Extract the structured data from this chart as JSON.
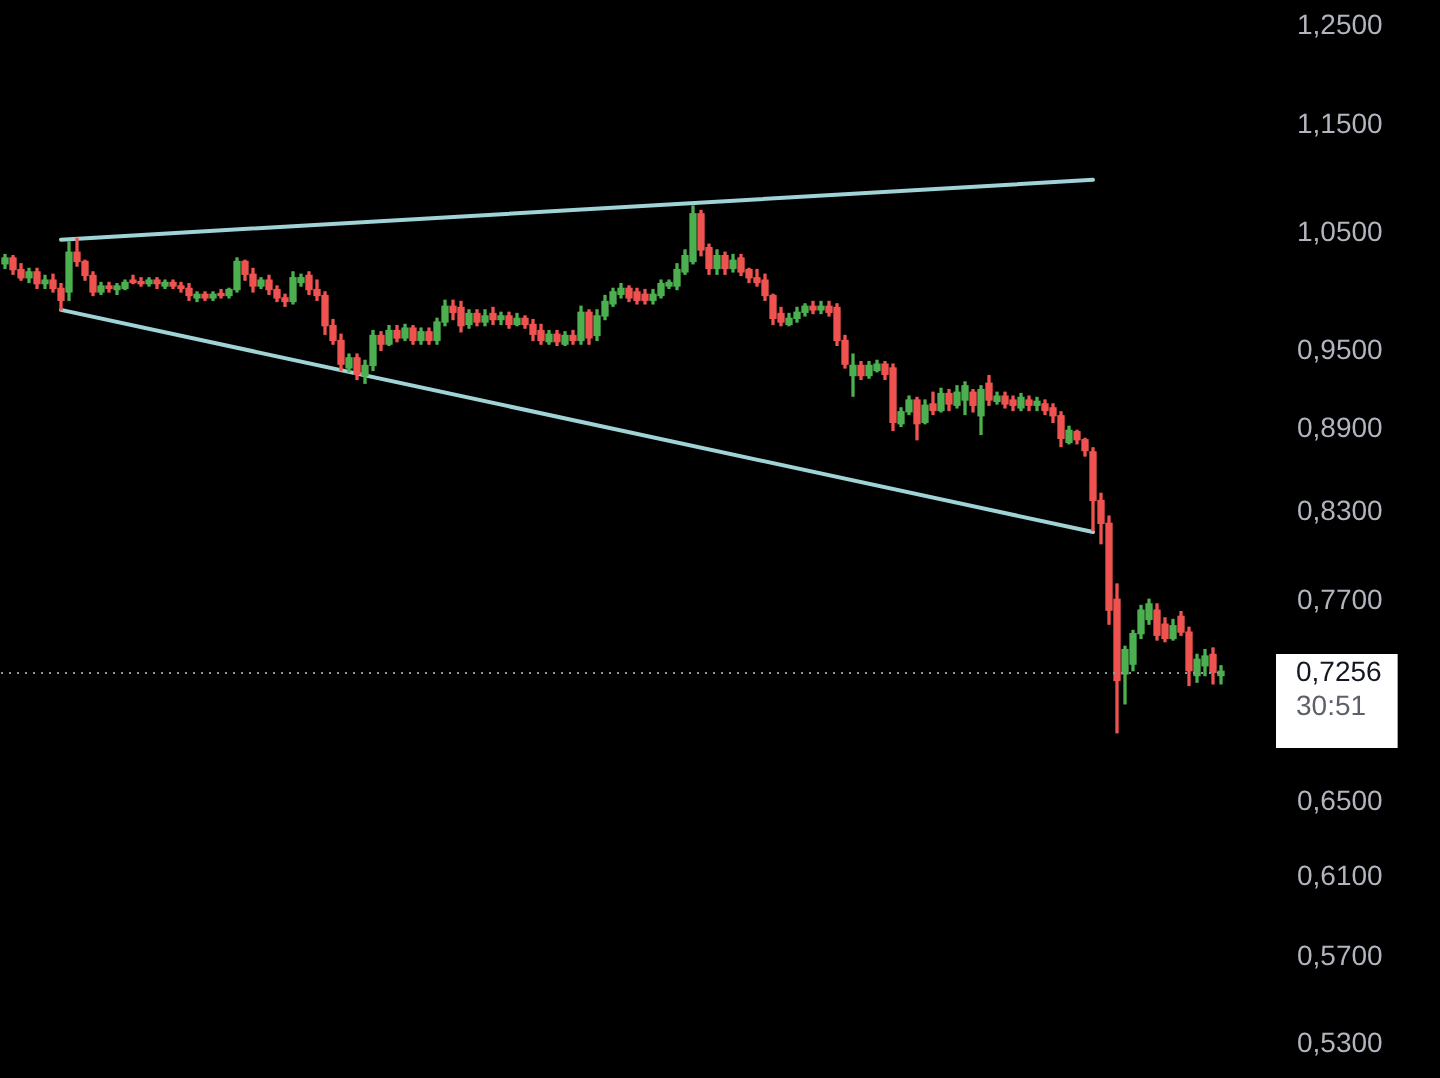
{
  "chart_data": {
    "type": "candlestick",
    "categories": [
      null,
      null,
      null,
      null,
      null,
      null,
      null,
      null,
      null,
      null,
      null,
      null,
      null,
      null,
      null,
      null,
      null,
      null,
      null,
      null,
      null,
      null,
      null,
      null,
      null,
      null,
      null,
      null,
      null,
      null,
      null,
      null,
      null,
      null,
      null,
      null,
      null,
      null,
      null,
      null,
      null,
      null,
      null,
      null,
      null,
      null,
      null,
      null,
      null,
      null,
      null,
      null,
      null,
      null,
      null,
      null,
      null,
      null,
      null,
      null,
      null,
      null,
      null,
      null,
      null,
      null,
      null,
      null,
      null,
      null,
      null,
      null,
      null,
      null,
      null,
      null,
      null,
      null,
      null,
      null,
      null,
      null,
      null,
      null,
      null,
      null,
      null,
      null,
      null,
      null,
      null,
      null,
      null,
      null,
      null,
      null,
      null,
      null,
      null,
      null,
      null,
      null,
      null,
      null,
      null,
      null,
      null,
      null,
      null,
      null,
      null,
      null,
      null,
      null,
      null,
      null,
      null,
      null,
      null,
      null,
      null,
      null,
      null,
      null,
      null,
      null,
      null,
      null,
      null,
      null,
      null,
      null,
      null,
      null,
      null,
      null,
      null,
      null,
      null,
      null,
      null,
      null,
      null,
      null,
      null,
      null,
      null,
      null,
      null,
      null,
      null,
      null,
      null
    ],
    "ohlc": [
      [
        1.023,
        1.031,
        1.019,
        1.028
      ],
      [
        1.028,
        1.03,
        1.014,
        1.018
      ],
      [
        1.018,
        1.023,
        1.009,
        1.011
      ],
      [
        1.011,
        1.019,
        1.007,
        1.016
      ],
      [
        1.016,
        1.019,
        1.002,
        1.006
      ],
      [
        1.006,
        1.013,
        1.002,
        1.009
      ],
      [
        1.009,
        1.014,
        0.999,
        1.002
      ],
      [
        1.002,
        1.006,
        0.984,
        0.992
      ],
      [
        0.999,
        1.042,
        0.992,
        1.033
      ],
      [
        1.033,
        1.045,
        1.021,
        1.025
      ],
      [
        1.025,
        1.026,
        1.009,
        1.013
      ],
      [
        1.013,
        1.016,
        0.996,
        0.999
      ],
      [
        0.999,
        1.007,
        0.997,
        1.004
      ],
      [
        1.004,
        1.007,
        0.999,
        1.002
      ],
      [
        1.001,
        1.006,
        0.997,
        1.004
      ],
      [
        1.002,
        1.009,
        1.001,
        1.007
      ],
      [
        1.009,
        1.013,
        1.006,
        1.007
      ],
      [
        1.007,
        1.011,
        1.004,
        1.006
      ],
      [
        1.006,
        1.011,
        1.004,
        1.009
      ],
      [
        1.009,
        1.011,
        1.002,
        1.006
      ],
      [
        1.004,
        1.009,
        1.002,
        1.007
      ],
      [
        1.007,
        1.009,
        1.002,
        1.004
      ],
      [
        1.004,
        1.007,
        0.999,
        1.002
      ],
      [
        1.002,
        1.006,
        0.992,
        0.996
      ],
      [
        0.994,
        0.999,
        0.991,
        0.997
      ],
      [
        0.997,
        0.999,
        0.992,
        0.994
      ],
      [
        0.994,
        0.999,
        0.992,
        0.997
      ],
      [
        0.997,
        1.001,
        0.994,
        0.996
      ],
      [
        0.996,
        1.002,
        0.994,
        1.001
      ],
      [
        1.001,
        1.028,
        0.999,
        1.025
      ],
      [
        1.025,
        1.026,
        1.009,
        1.014
      ],
      [
        1.014,
        1.019,
        0.999,
        1.004
      ],
      [
        1.004,
        1.011,
        1.002,
        1.009
      ],
      [
        1.009,
        1.013,
        0.997,
        1.001
      ],
      [
        1.001,
        1.004,
        0.991,
        0.994
      ],
      [
        0.994,
        0.997,
        0.987,
        0.991
      ],
      [
        0.991,
        1.016,
        0.989,
        1.011
      ],
      [
        1.007,
        1.014,
        1.004,
        1.011
      ],
      [
        1.013,
        1.016,
        0.997,
        1.001
      ],
      [
        1.001,
        1.009,
        0.992,
        0.996
      ],
      [
        0.996,
        0.999,
        0.964,
        0.971
      ],
      [
        0.971,
        0.976,
        0.956,
        0.959
      ],
      [
        0.959,
        0.964,
        0.935,
        0.94
      ],
      [
        0.937,
        0.948,
        0.934,
        0.945
      ],
      [
        0.945,
        0.948,
        0.928,
        0.932
      ],
      [
        0.931,
        0.943,
        0.925,
        0.939
      ],
      [
        0.939,
        0.967,
        0.935,
        0.963
      ],
      [
        0.963,
        0.966,
        0.951,
        0.956
      ],
      [
        0.956,
        0.971,
        0.955,
        0.967
      ],
      [
        0.967,
        0.971,
        0.958,
        0.961
      ],
      [
        0.961,
        0.972,
        0.959,
        0.969
      ],
      [
        0.969,
        0.971,
        0.956,
        0.959
      ],
      [
        0.959,
        0.969,
        0.956,
        0.966
      ],
      [
        0.966,
        0.969,
        0.956,
        0.959
      ],
      [
        0.959,
        0.977,
        0.956,
        0.974
      ],
      [
        0.974,
        0.992,
        0.971,
        0.987
      ],
      [
        0.987,
        0.992,
        0.976,
        0.982
      ],
      [
        0.986,
        0.991,
        0.966,
        0.971
      ],
      [
        0.972,
        0.984,
        0.969,
        0.981
      ],
      [
        0.981,
        0.984,
        0.971,
        0.974
      ],
      [
        0.974,
        0.984,
        0.971,
        0.979
      ],
      [
        0.981,
        0.986,
        0.972,
        0.976
      ],
      [
        0.976,
        0.982,
        0.972,
        0.979
      ],
      [
        0.979,
        0.982,
        0.969,
        0.972
      ],
      [
        0.972,
        0.981,
        0.971,
        0.977
      ],
      [
        0.977,
        0.979,
        0.969,
        0.972
      ],
      [
        0.972,
        0.976,
        0.959,
        0.964
      ],
      [
        0.967,
        0.972,
        0.956,
        0.959
      ],
      [
        0.958,
        0.967,
        0.956,
        0.964
      ],
      [
        0.964,
        0.967,
        0.955,
        0.958
      ],
      [
        0.956,
        0.966,
        0.955,
        0.963
      ],
      [
        0.963,
        0.967,
        0.956,
        0.959
      ],
      [
        0.959,
        0.987,
        0.956,
        0.982
      ],
      [
        0.982,
        0.984,
        0.956,
        0.961
      ],
      [
        0.963,
        0.984,
        0.959,
        0.979
      ],
      [
        0.979,
        0.996,
        0.976,
        0.991
      ],
      [
        0.989,
        1.002,
        0.987,
        0.999
      ],
      [
        0.997,
        1.006,
        0.994,
        1.002
      ],
      [
        1.002,
        1.004,
        0.991,
        0.994
      ],
      [
        0.999,
        1.002,
        0.989,
        0.992
      ],
      [
        0.997,
        1.001,
        0.989,
        0.992
      ],
      [
        0.992,
        1.001,
        0.989,
        0.997
      ],
      [
        0.996,
        1.009,
        0.994,
        1.006
      ],
      [
        1.004,
        1.009,
        1.002,
        1.007
      ],
      [
        1.004,
        1.023,
        1.001,
        1.018
      ],
      [
        1.016,
        1.035,
        1.014,
        1.03
      ],
      [
        1.025,
        1.074,
        1.023,
        1.067
      ],
      [
        1.067,
        1.07,
        1.03,
        1.035
      ],
      [
        1.037,
        1.04,
        1.014,
        1.019
      ],
      [
        1.019,
        1.035,
        1.014,
        1.03
      ],
      [
        1.03,
        1.033,
        1.014,
        1.019
      ],
      [
        1.019,
        1.031,
        1.016,
        1.026
      ],
      [
        1.028,
        1.031,
        1.013,
        1.016
      ],
      [
        1.018,
        1.019,
        1.007,
        1.011
      ],
      [
        1.011,
        1.018,
        1.004,
        1.007
      ],
      [
        1.009,
        1.014,
        0.992,
        0.996
      ],
      [
        0.996,
        0.997,
        0.972,
        0.977
      ],
      [
        0.981,
        0.986,
        0.971,
        0.974
      ],
      [
        0.972,
        0.981,
        0.971,
        0.977
      ],
      [
        0.977,
        0.986,
        0.974,
        0.982
      ],
      [
        0.982,
        0.989,
        0.979,
        0.987
      ],
      [
        0.987,
        0.991,
        0.981,
        0.984
      ],
      [
        0.984,
        0.991,
        0.981,
        0.987
      ],
      [
        0.987,
        0.991,
        0.979,
        0.982
      ],
      [
        0.986,
        0.989,
        0.955,
        0.959
      ],
      [
        0.959,
        0.963,
        0.937,
        0.94
      ],
      [
        0.931,
        0.948,
        0.915,
        0.939
      ],
      [
        0.939,
        0.942,
        0.928,
        0.931
      ],
      [
        0.931,
        0.942,
        0.929,
        0.939
      ],
      [
        0.935,
        0.943,
        0.934,
        0.94
      ],
      [
        0.94,
        0.942,
        0.928,
        0.932
      ],
      [
        0.937,
        0.94,
        0.889,
        0.895
      ],
      [
        0.894,
        0.906,
        0.892,
        0.903
      ],
      [
        0.903,
        0.915,
        0.901,
        0.912
      ],
      [
        0.912,
        0.914,
        0.882,
        0.894
      ],
      [
        0.895,
        0.912,
        0.894,
        0.908
      ],
      [
        0.909,
        0.918,
        0.901,
        0.904
      ],
      [
        0.904,
        0.921,
        0.903,
        0.917
      ],
      [
        0.917,
        0.92,
        0.904,
        0.909
      ],
      [
        0.908,
        0.923,
        0.906,
        0.918
      ],
      [
        0.912,
        0.926,
        0.901,
        0.923
      ],
      [
        0.918,
        0.92,
        0.903,
        0.908
      ],
      [
        0.9,
        0.923,
        0.886,
        0.92
      ],
      [
        0.925,
        0.931,
        0.908,
        0.912
      ],
      [
        0.911,
        0.918,
        0.909,
        0.915
      ],
      [
        0.915,
        0.918,
        0.906,
        0.909
      ],
      [
        0.912,
        0.915,
        0.904,
        0.908
      ],
      [
        0.906,
        0.917,
        0.904,
        0.914
      ],
      [
        0.912,
        0.915,
        0.904,
        0.908
      ],
      [
        0.908,
        0.914,
        0.904,
        0.911
      ],
      [
        0.909,
        0.912,
        0.901,
        0.904
      ],
      [
        0.906,
        0.909,
        0.895,
        0.9
      ],
      [
        0.9,
        0.903,
        0.877,
        0.883
      ],
      [
        0.88,
        0.892,
        0.879,
        0.889
      ],
      [
        0.888,
        0.889,
        0.879,
        0.882
      ],
      [
        0.882,
        0.883,
        0.87,
        0.874
      ],
      [
        0.873,
        0.876,
        0.817,
        0.838
      ],
      [
        0.838,
        0.843,
        0.808,
        0.822
      ],
      [
        0.822,
        0.827,
        0.755,
        0.764
      ],
      [
        0.771,
        0.781,
        0.689,
        0.72
      ],
      [
        0.724,
        0.741,
        0.706,
        0.739
      ],
      [
        0.73,
        0.751,
        0.726,
        0.749
      ],
      [
        0.749,
        0.767,
        0.746,
        0.764
      ],
      [
        0.758,
        0.771,
        0.755,
        0.768
      ],
      [
        0.764,
        0.768,
        0.745,
        0.748
      ],
      [
        0.755,
        0.759,
        0.744,
        0.746
      ],
      [
        0.746,
        0.758,
        0.745,
        0.754
      ],
      [
        0.76,
        0.763,
        0.748,
        0.75
      ],
      [
        0.75,
        0.753,
        0.717,
        0.726
      ],
      [
        0.723,
        0.736,
        0.719,
        0.733
      ],
      [
        0.729,
        0.739,
        0.723,
        0.735
      ],
      [
        0.736,
        0.74,
        0.718,
        0.725
      ],
      [
        0.723,
        0.729,
        0.718,
        0.7256
      ]
    ],
    "colors": [
      "#4caf50",
      "#ef5350",
      "#ef5350",
      "#4caf50",
      "#ef5350",
      "#4caf50",
      "#ef5350",
      "#ef5350",
      "#4caf50",
      "#ef5350",
      "#ef5350",
      "#ef5350",
      "#4caf50",
      "#ef5350",
      "#4caf50",
      "#4caf50",
      "#ef5350",
      "#ef5350",
      "#4caf50",
      "#ef5350",
      "#4caf50",
      "#ef5350",
      "#ef5350",
      "#ef5350",
      "#4caf50",
      "#ef5350",
      "#4caf50",
      "#ef5350",
      "#4caf50",
      "#4caf50",
      "#ef5350",
      "#ef5350",
      "#4caf50",
      "#ef5350",
      "#ef5350",
      "#ef5350",
      "#4caf50",
      "#4caf50",
      "#ef5350",
      "#ef5350",
      "#ef5350",
      "#ef5350",
      "#ef5350",
      "#4caf50",
      "#ef5350",
      "#4caf50",
      "#4caf50",
      "#ef5350",
      "#4caf50",
      "#ef5350",
      "#4caf50",
      "#ef5350",
      "#4caf50",
      "#ef5350",
      "#4caf50",
      "#4caf50",
      "#ef5350",
      "#ef5350",
      "#4caf50",
      "#ef5350",
      "#4caf50",
      "#ef5350",
      "#4caf50",
      "#ef5350",
      "#4caf50",
      "#ef5350",
      "#ef5350",
      "#ef5350",
      "#4caf50",
      "#ef5350",
      "#4caf50",
      "#ef5350",
      "#4caf50",
      "#ef5350",
      "#4caf50",
      "#4caf50",
      "#4caf50",
      "#4caf50",
      "#ef5350",
      "#ef5350",
      "#ef5350",
      "#4caf50",
      "#4caf50",
      "#4caf50",
      "#4caf50",
      "#4caf50",
      "#4caf50",
      "#ef5350",
      "#ef5350",
      "#4caf50",
      "#ef5350",
      "#4caf50",
      "#ef5350",
      "#ef5350",
      "#ef5350",
      "#ef5350",
      "#ef5350",
      "#ef5350",
      "#4caf50",
      "#4caf50",
      "#4caf50",
      "#ef5350",
      "#4caf50",
      "#ef5350",
      "#ef5350",
      "#ef5350",
      "#4caf50",
      "#ef5350",
      "#4caf50",
      "#4caf50",
      "#ef5350",
      "#ef5350",
      "#4caf50",
      "#4caf50",
      "#ef5350",
      "#4caf50",
      "#ef5350",
      "#4caf50",
      "#ef5350",
      "#4caf50",
      "#4caf50",
      "#ef5350",
      "#4caf50",
      "#ef5350",
      "#4caf50",
      "#ef5350",
      "#ef5350",
      "#4caf50",
      "#ef5350",
      "#4caf50",
      "#ef5350",
      "#ef5350",
      "#ef5350",
      "#4caf50",
      "#ef5350",
      "#ef5350",
      "#ef5350",
      "#ef5350",
      "#ef5350",
      "#ef5350",
      "#4caf50",
      "#4caf50",
      "#4caf50",
      "#4caf50",
      "#ef5350",
      "#ef5350",
      "#4caf50",
      "#ef5350",
      "#ef5350",
      "#4caf50",
      "#4caf50",
      "#ef5350",
      "#4caf50"
    ],
    "series": [
      {
        "type": "line",
        "color": "#9fd3d6",
        "values": [
          null,
          null,
          null,
          null,
          null,
          null,
          null,
          1.044,
          null,
          null,
          null,
          null,
          null,
          null,
          null,
          null,
          null,
          null,
          null,
          null,
          null,
          null,
          null,
          null,
          null,
          null,
          null,
          null,
          null,
          null,
          null,
          null,
          null,
          null,
          null,
          null,
          null,
          null,
          null,
          null,
          null,
          null,
          null,
          null,
          null,
          null,
          null,
          null,
          null,
          null,
          null,
          null,
          null,
          null,
          null,
          null,
          null,
          null,
          null,
          null,
          null,
          null,
          null,
          null,
          null,
          null,
          null,
          null,
          null,
          null,
          null,
          null,
          null,
          null,
          null,
          null,
          null,
          null,
          null,
          null,
          null,
          null,
          null,
          null,
          null,
          null,
          null,
          null,
          null,
          null,
          null,
          null,
          null,
          null,
          null,
          null,
          null,
          null,
          null,
          null,
          null,
          null,
          null,
          null,
          null,
          null,
          null,
          null,
          null,
          null,
          null,
          null,
          null,
          null,
          null,
          null,
          null,
          null,
          null,
          null,
          null,
          null,
          null,
          null,
          null,
          null,
          null,
          null,
          null,
          null,
          null,
          null,
          null,
          null,
          null,
          null,
          1.098,
          null,
          null,
          null,
          null,
          null,
          null,
          null,
          null,
          null,
          null,
          null,
          null,
          null,
          null,
          null,
          null
        ]
      },
      {
        "type": "line",
        "color": "#9fd3d6",
        "values": [
          null,
          null,
          null,
          null,
          null,
          null,
          null,
          0.984,
          null,
          null,
          null,
          null,
          null,
          null,
          null,
          null,
          null,
          null,
          null,
          null,
          null,
          null,
          null,
          null,
          null,
          null,
          null,
          null,
          null,
          null,
          null,
          null,
          null,
          null,
          null,
          null,
          null,
          null,
          null,
          null,
          null,
          null,
          null,
          null,
          null,
          null,
          null,
          null,
          null,
          null,
          null,
          null,
          null,
          null,
          null,
          null,
          null,
          null,
          null,
          null,
          null,
          null,
          null,
          null,
          null,
          null,
          null,
          null,
          null,
          null,
          null,
          null,
          null,
          null,
          null,
          null,
          null,
          null,
          null,
          null,
          null,
          null,
          null,
          null,
          null,
          null,
          null,
          null,
          null,
          null,
          null,
          null,
          null,
          null,
          null,
          null,
          null,
          null,
          null,
          null,
          null,
          null,
          null,
          null,
          null,
          null,
          null,
          null,
          null,
          null,
          null,
          null,
          null,
          null,
          null,
          null,
          null,
          null,
          null,
          null,
          null,
          null,
          null,
          null,
          null,
          null,
          null,
          null,
          null,
          null,
          null,
          null,
          null,
          null,
          null,
          null,
          0.816,
          null,
          null,
          null,
          null,
          null,
          null,
          null,
          null,
          null,
          null,
          null,
          null,
          null,
          null,
          null,
          null
        ]
      }
    ],
    "log": "y",
    "ylim": [
      0.53,
      1.25
    ],
    "yticks": [
      {
        "value": 1.25,
        "label": "1,2500"
      },
      {
        "value": 1.15,
        "label": "1,1500"
      },
      {
        "value": 1.05,
        "label": "1,0500"
      },
      {
        "value": 0.95,
        "label": "0,9500"
      },
      {
        "value": 0.89,
        "label": "0,8900"
      },
      {
        "value": 0.83,
        "label": "0,8300"
      },
      {
        "value": 0.77,
        "label": "0,7700"
      },
      {
        "value": 0.65,
        "label": "0,6500"
      },
      {
        "value": 0.61,
        "label": "0,6100"
      },
      {
        "value": 0.57,
        "label": "0,5700"
      },
      {
        "value": 0.53,
        "label": "0,5300"
      }
    ],
    "tick_labels": "y",
    "ref_lines": [
      {
        "axis": "y",
        "value": 0.7256,
        "label": "0,7256",
        "color": "#9598a1",
        "line_style": "dotted"
      }
    ],
    "annotations": [
      "30:51"
    ]
  }
}
